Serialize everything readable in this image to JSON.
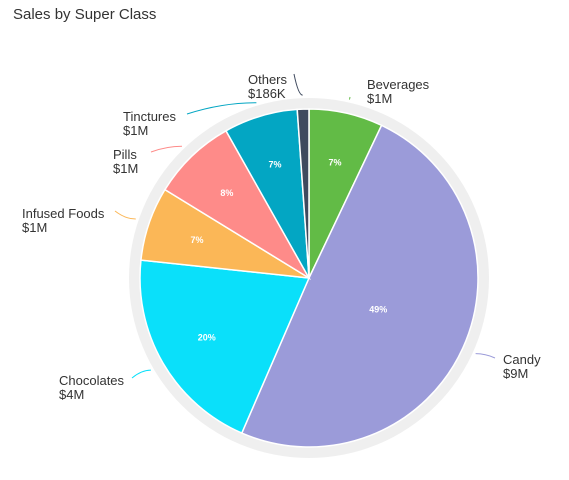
{
  "title": "Sales by Super Class",
  "chart_data": {
    "type": "pie",
    "title": "Sales by Super Class",
    "slices": [
      {
        "name": "Beverages",
        "value_label": "$1M",
        "percent": 7,
        "pct_label": "7%",
        "color": "#62bb46"
      },
      {
        "name": "Candy",
        "value_label": "$9M",
        "percent": 49,
        "pct_label": "49%",
        "color": "#9b9bd9"
      },
      {
        "name": "Chocolates",
        "value_label": "$4M",
        "percent": 20,
        "pct_label": "20%",
        "color": "#0ae0fa"
      },
      {
        "name": "Infused Foods",
        "value_label": "$1M",
        "percent": 7,
        "pct_label": "7%",
        "color": "#fbb757"
      },
      {
        "name": "Pills",
        "value_label": "$1M",
        "percent": 8,
        "pct_label": "8%",
        "color": "#fe8b89"
      },
      {
        "name": "Tinctures",
        "value_label": "$1M",
        "percent": 7,
        "pct_label": "7%",
        "color": "#03a6c3"
      },
      {
        "name": "Others",
        "value_label": "$186K",
        "percent": 1.1,
        "pct_label": "",
        "color": "#3f4a5e"
      }
    ]
  }
}
